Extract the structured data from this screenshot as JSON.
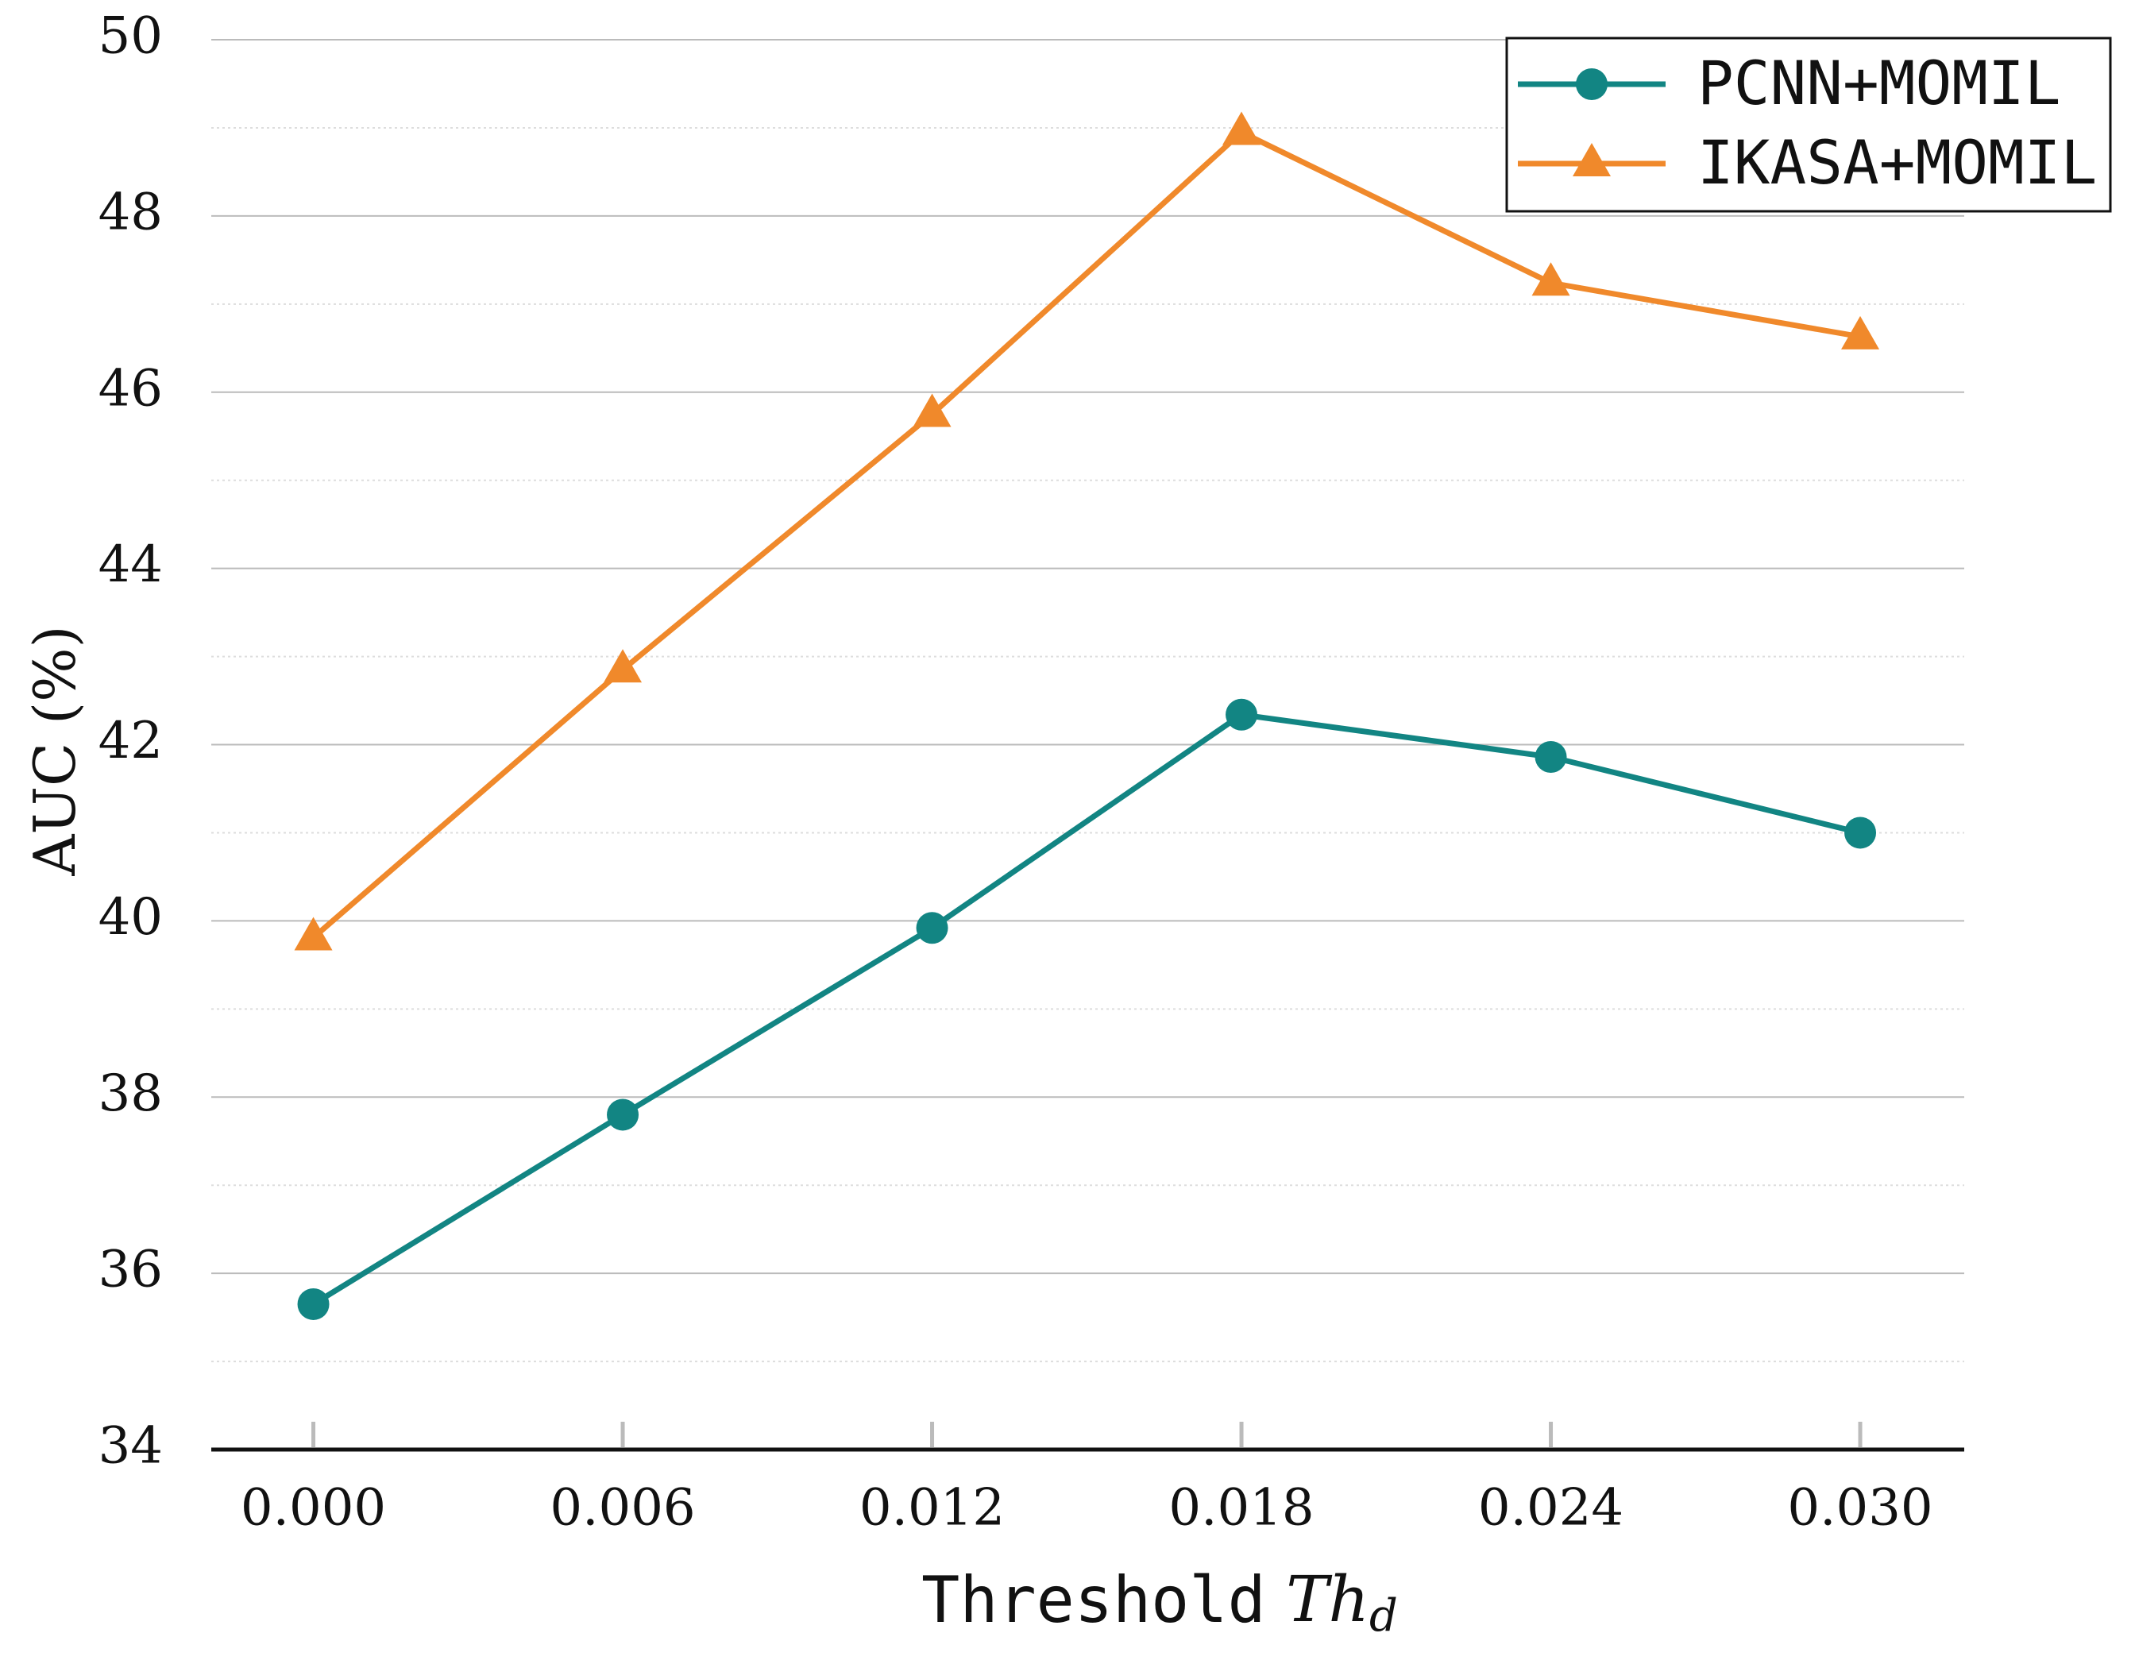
{
  "chart_data": {
    "type": "line",
    "x_label": {
      "text": "Threshold",
      "symbol": "Th",
      "subscript": "d"
    },
    "y_label": "AUC (%)",
    "categories": [
      "0.000",
      "0.006",
      "0.012",
      "0.018",
      "0.024",
      "0.030"
    ],
    "series": [
      {
        "name": "PCNN+MOMIL",
        "color": "#128583",
        "marker": "circle",
        "values": [
          35.65,
          37.8,
          39.92,
          42.34,
          41.86,
          41.0
        ]
      },
      {
        "name": "IKASA+MOMIL",
        "color": "#f0892b",
        "marker": "triangle",
        "values": [
          39.81,
          42.85,
          45.75,
          48.95,
          47.24,
          46.63
        ]
      }
    ],
    "ylim": [
      34,
      50
    ],
    "yticks": [
      34,
      36,
      38,
      40,
      42,
      44,
      46,
      48,
      50
    ],
    "minor_yticks": [
      35,
      37,
      39,
      41,
      43,
      45,
      47,
      49
    ],
    "grid": true,
    "legend": "upper right"
  }
}
